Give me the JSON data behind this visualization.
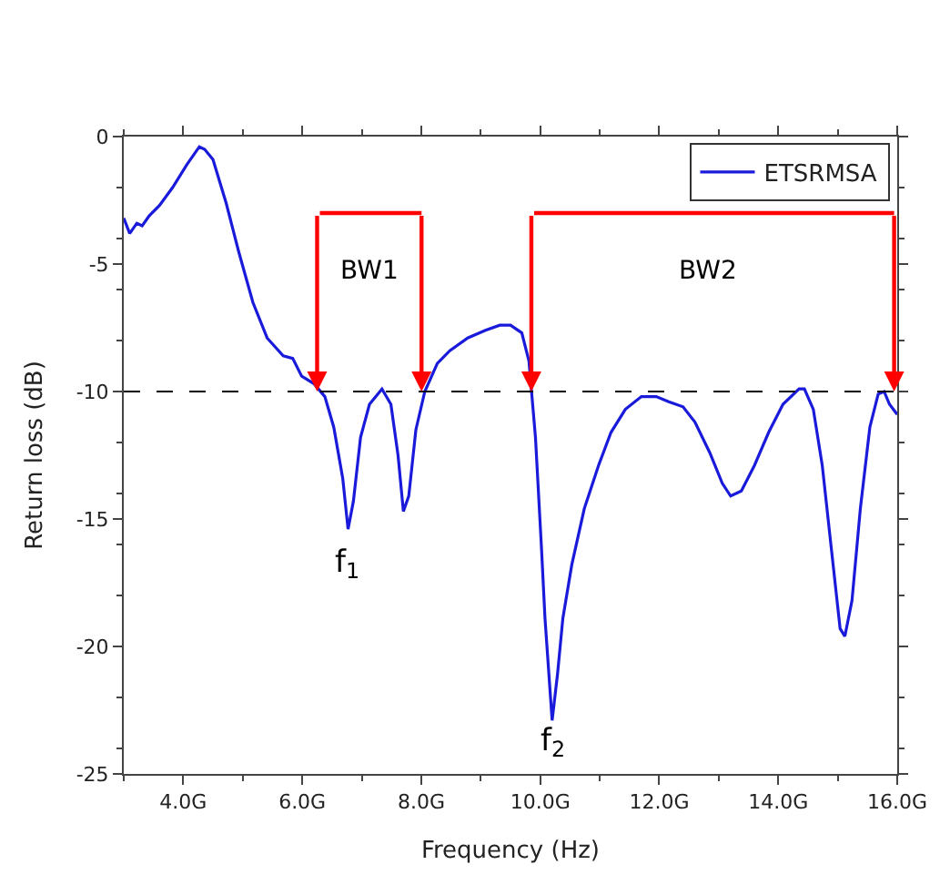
{
  "chart_data": {
    "type": "line",
    "xlabel": "Frequency (Hz)",
    "ylabel": "Return loss (dB)",
    "x": [
      3.0,
      3.1,
      3.22,
      3.31,
      3.43,
      3.6,
      3.82,
      4.06,
      4.27,
      4.36,
      4.5,
      4.72,
      4.93,
      5.17,
      5.41,
      5.68,
      5.84,
      5.99,
      6.2,
      6.38,
      6.53,
      6.68,
      6.77,
      6.86,
      6.98,
      7.13,
      7.34,
      7.49,
      7.61,
      7.7,
      7.79,
      7.91,
      8.06,
      8.27,
      8.48,
      8.78,
      9.08,
      9.32,
      9.5,
      9.69,
      9.81,
      9.92,
      10.02,
      10.08,
      10.2,
      10.29,
      10.38,
      10.53,
      10.74,
      10.98,
      11.19,
      11.43,
      11.7,
      11.95,
      12.16,
      12.4,
      12.6,
      12.85,
      13.06,
      13.2,
      13.38,
      13.6,
      13.84,
      14.08,
      14.35,
      14.44,
      14.59,
      14.74,
      14.89,
      15.04,
      15.12,
      15.24,
      15.38,
      15.54,
      15.68,
      15.78,
      15.87,
      16.0
    ],
    "series": [
      {
        "name": "ETSRMSA",
        "color": "#1a1adb",
        "values": [
          -3.2,
          -3.8,
          -3.4,
          -3.5,
          -3.1,
          -2.7,
          -2.0,
          -1.1,
          -0.4,
          -0.5,
          -0.9,
          -2.6,
          -4.5,
          -6.5,
          -7.9,
          -8.6,
          -8.7,
          -9.4,
          -9.7,
          -10.2,
          -11.4,
          -13.4,
          -15.4,
          -14.3,
          -11.8,
          -10.5,
          -9.9,
          -10.5,
          -12.5,
          -14.7,
          -14.1,
          -11.5,
          -10.0,
          -8.9,
          -8.4,
          -7.9,
          -7.6,
          -7.4,
          -7.4,
          -7.7,
          -8.8,
          -11.8,
          -16.1,
          -18.9,
          -22.9,
          -21.1,
          -18.9,
          -16.8,
          -14.6,
          -12.9,
          -11.6,
          -10.7,
          -10.2,
          -10.2,
          -10.4,
          -10.6,
          -11.2,
          -12.4,
          -13.6,
          -14.1,
          -13.9,
          -12.9,
          -11.6,
          -10.5,
          -9.9,
          -9.9,
          -10.7,
          -12.9,
          -16.1,
          -19.3,
          -19.6,
          -18.2,
          -14.6,
          -11.4,
          -10.1,
          -10.0,
          -10.5,
          -10.9
        ]
      }
    ],
    "xlim": [
      3,
      16
    ],
    "xticks": [
      {
        "value": 4,
        "label": "4.0G"
      },
      {
        "value": 6,
        "label": "6.0G"
      },
      {
        "value": 8,
        "label": "8.0G"
      },
      {
        "value": 10,
        "label": "10.0G"
      },
      {
        "value": 12,
        "label": "12.0G"
      },
      {
        "value": 14,
        "label": "14.0G"
      },
      {
        "value": 16,
        "label": "16.0G"
      }
    ],
    "ylim": [
      -25,
      0
    ],
    "yticks": [
      -25,
      -20,
      -15,
      -10,
      -5,
      0
    ],
    "ref_lines": [
      {
        "axis": "y",
        "value": -10,
        "color": "#000000",
        "line_style": "dashed"
      }
    ],
    "annotations": [
      "BW1",
      "BW2",
      "f$_{1}$",
      "f$_{2}$"
    ],
    "legend": "top right",
    "marker": "none",
    "line_style": "solid"
  }
}
